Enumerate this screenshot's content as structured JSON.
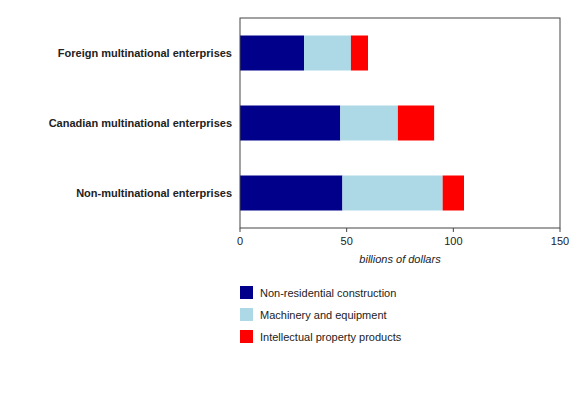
{
  "chart_data": {
    "type": "bar",
    "orientation": "horizontal",
    "stacked": true,
    "categories": [
      "Non-multinational enterprises",
      "Canadian multinational enterprises",
      "Foreign multinational enterprises"
    ],
    "series": [
      {
        "name": "Non-residential construction",
        "color": "#00008B",
        "values": [
          48,
          47,
          30
        ]
      },
      {
        "name": "Machinery and equipment",
        "color": "#ADD8E6",
        "values": [
          47,
          27,
          22
        ]
      },
      {
        "name": "Intellectual property products",
        "color": "#FF0000",
        "values": [
          10,
          17,
          8
        ]
      }
    ],
    "xlim": [
      0,
      150
    ],
    "xticks": [
      0,
      50,
      100,
      150
    ],
    "xlabel": "billions of dollars",
    "legend": "bottom"
  }
}
